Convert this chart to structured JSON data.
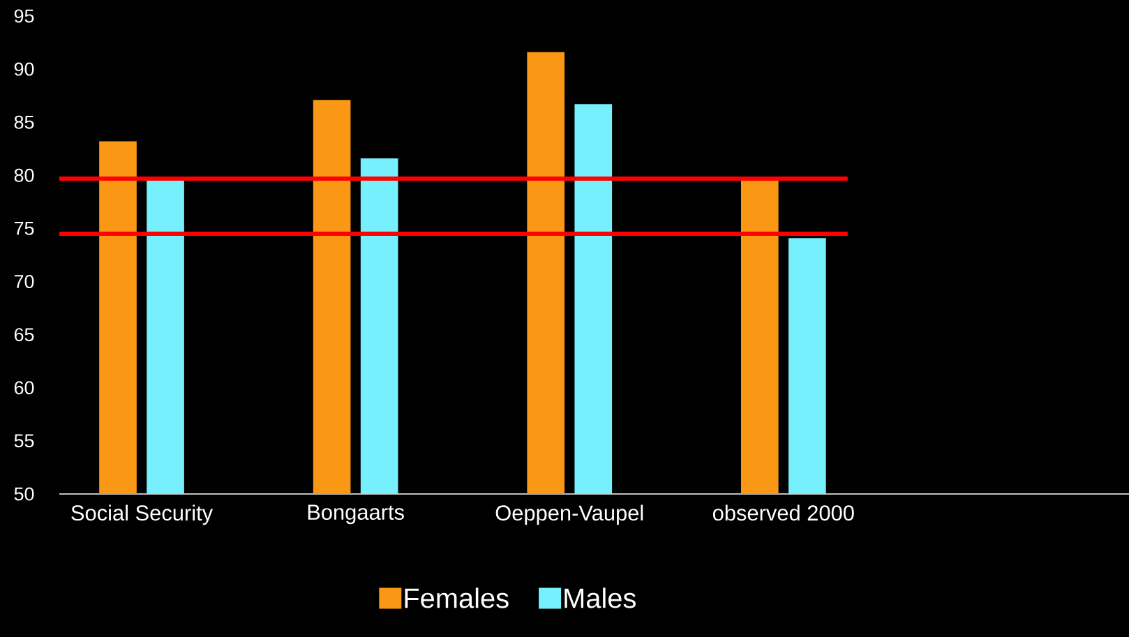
{
  "chart_data": {
    "type": "bar",
    "categories": [
      "Social Security",
      "Bongaarts",
      "Oeppen-Vaupel",
      "observed 2000",
      null
    ],
    "series": [
      {
        "name": "Females",
        "color": "#fa9815",
        "values": [
          83.2,
          87.1,
          91.6,
          79.5,
          null
        ]
      },
      {
        "name": "Males",
        "color": "#75f0fc",
        "values": [
          79.5,
          81.6,
          86.7,
          74.1,
          null
        ]
      }
    ],
    "ylim": [
      50,
      95
    ],
    "yticks": [
      50,
      55,
      60,
      65,
      70,
      75,
      80,
      85,
      90,
      95
    ],
    "ref_lines": [
      {
        "axis": "y",
        "value": 79.7,
        "color": "#ff0000"
      },
      {
        "axis": "y",
        "value": 74.5,
        "color": "#ff0000"
      }
    ],
    "legend": "bottom",
    "grid": false
  }
}
